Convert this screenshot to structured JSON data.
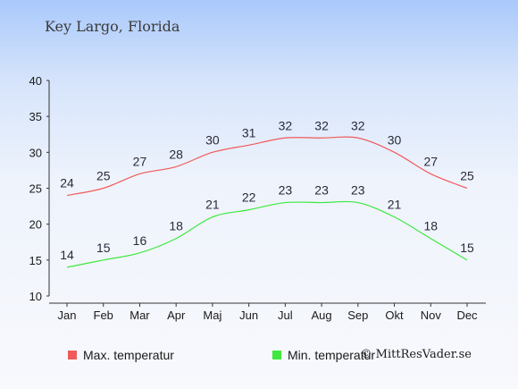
{
  "chart_data": {
    "type": "line",
    "title": "Key Largo, Florida",
    "categories": [
      "Jan",
      "Feb",
      "Mar",
      "Apr",
      "Maj",
      "Jun",
      "Jul",
      "Aug",
      "Sep",
      "Okt",
      "Nov",
      "Dec"
    ],
    "series": [
      {
        "name": "Max. temperatur",
        "color": "#f05a5a",
        "values": [
          24,
          25,
          27,
          28,
          30,
          31,
          32,
          32,
          32,
          30,
          27,
          25
        ]
      },
      {
        "name": "Min. temperatur",
        "color": "#3ee83e",
        "values": [
          14,
          15,
          16,
          18,
          21,
          22,
          23,
          23,
          23,
          21,
          18,
          15
        ]
      }
    ],
    "ylim": [
      10,
      40
    ],
    "yticks": [
      10,
      15,
      20,
      25,
      30,
      35,
      40
    ],
    "xlabel": "",
    "ylabel": "",
    "grid": false,
    "legend_placement": "bottom-left"
  },
  "copyright": "© MittResVader.se"
}
